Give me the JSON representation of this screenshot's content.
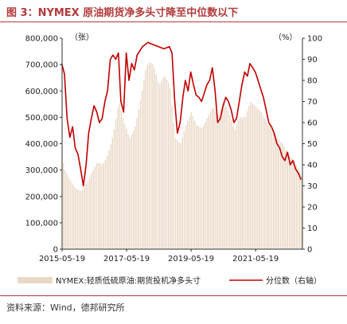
{
  "header": {
    "title": "图 3：NYMEX 原油期货净多头寸降至中位数以下"
  },
  "footer": {
    "source": "资料来源：Wind，德邦研究所"
  },
  "colors": {
    "accent": "#b23a3a",
    "bar_fill": "#ead8c6",
    "line": "#c00000"
  },
  "chart_data": {
    "type": "bar",
    "title": "",
    "x_tick_labels": [
      "2015-05-19",
      "2017-05-19",
      "2019-05-19",
      "2021-05-19"
    ],
    "x_tick_dates": [
      "2015-05-19",
      "2017-05-19",
      "2019-05-19",
      "2021-05-19"
    ],
    "x_range": [
      "2015-05-19",
      "2022-10-31"
    ],
    "left_axis": {
      "unit": "（张）",
      "range": [
        0,
        800000
      ],
      "ticks": [
        "0",
        "100,000",
        "200,000",
        "300,000",
        "400,000",
        "500,000",
        "600,000",
        "700,000",
        "800,000"
      ],
      "tick_values": [
        0,
        100000,
        200000,
        300000,
        400000,
        500000,
        600000,
        700000,
        800000
      ]
    },
    "right_axis": {
      "unit": "（%）",
      "range": [
        0,
        100
      ],
      "ticks": [
        "0",
        "10",
        "20",
        "30",
        "40",
        "50",
        "60",
        "70",
        "80",
        "90",
        "100"
      ],
      "tick_values": [
        0,
        10,
        20,
        30,
        40,
        50,
        60,
        70,
        80,
        90,
        100
      ]
    },
    "grid": false,
    "legend_position": "bottom",
    "series": [
      {
        "name": "NYMEX:轻质低硫原油:期货投机净多头寸",
        "type": "bar",
        "axis": "left",
        "x": [
          "2015-05",
          "2015-06",
          "2015-08",
          "2015-10",
          "2015-12",
          "2016-02",
          "2016-04",
          "2016-06",
          "2016-08",
          "2016-10",
          "2016-12",
          "2017-02",
          "2017-04",
          "2017-06",
          "2017-08",
          "2017-10",
          "2017-12",
          "2018-01",
          "2018-03",
          "2018-05",
          "2018-07",
          "2018-09",
          "2018-11",
          "2019-01",
          "2019-03",
          "2019-05",
          "2019-07",
          "2019-09",
          "2019-11",
          "2020-01",
          "2020-03",
          "2020-05",
          "2020-07",
          "2020-09",
          "2020-11",
          "2021-01",
          "2021-03",
          "2021-05",
          "2021-07",
          "2021-09",
          "2021-11",
          "2022-01",
          "2022-03",
          "2022-05",
          "2022-07",
          "2022-09",
          "2022-10"
        ],
        "values": [
          345000,
          300000,
          260000,
          230000,
          220000,
          250000,
          290000,
          330000,
          320000,
          360000,
          440000,
          560000,
          480000,
          420000,
          460000,
          560000,
          680000,
          710000,
          700000,
          620000,
          660000,
          620000,
          420000,
          400000,
          470000,
          520000,
          470000,
          460000,
          500000,
          540000,
          500000,
          560000,
          520000,
          450000,
          500000,
          500000,
          560000,
          540000,
          520000,
          480000,
          460000,
          420000,
          400000,
          360000,
          340000,
          300000,
          280000
        ]
      },
      {
        "name": "分位数（右轴）",
        "type": "line",
        "axis": "right",
        "x": [
          "2015-05",
          "2015-06",
          "2015-07",
          "2015-08",
          "2015-09",
          "2015-10",
          "2015-11",
          "2015-12",
          "2016-01",
          "2016-02",
          "2016-03",
          "2016-04",
          "2016-05",
          "2016-06",
          "2016-07",
          "2016-08",
          "2016-09",
          "2016-10",
          "2016-11",
          "2016-12",
          "2017-01",
          "2017-02",
          "2017-03",
          "2017-04",
          "2017-05",
          "2017-06",
          "2017-07",
          "2017-08",
          "2017-09",
          "2017-10",
          "2017-11",
          "2017-12",
          "2018-01",
          "2018-03",
          "2018-05",
          "2018-07",
          "2018-09",
          "2018-10",
          "2018-11",
          "2018-12",
          "2019-01",
          "2019-02",
          "2019-03",
          "2019-04",
          "2019-05",
          "2019-06",
          "2019-07",
          "2019-08",
          "2019-09",
          "2019-10",
          "2019-11",
          "2019-12",
          "2020-01",
          "2020-02",
          "2020-03",
          "2020-04",
          "2020-05",
          "2020-06",
          "2020-07",
          "2020-08",
          "2020-09",
          "2020-10",
          "2020-11",
          "2020-12",
          "2021-01",
          "2021-02",
          "2021-03",
          "2021-04",
          "2021-05",
          "2021-06",
          "2021-07",
          "2021-08",
          "2021-09",
          "2021-10",
          "2021-11",
          "2021-12",
          "2022-01",
          "2022-02",
          "2022-03",
          "2022-04",
          "2022-05",
          "2022-06",
          "2022-07",
          "2022-08",
          "2022-09",
          "2022-10"
        ],
        "values": [
          88,
          83,
          62,
          53,
          58,
          48,
          45,
          38,
          30,
          40,
          55,
          62,
          68,
          65,
          60,
          62,
          70,
          75,
          90,
          92,
          90,
          93,
          70,
          65,
          93,
          80,
          88,
          85,
          92,
          94,
          96,
          97,
          98,
          97,
          96,
          95,
          96,
          93,
          70,
          55,
          60,
          72,
          80,
          75,
          84,
          78,
          73,
          72,
          70,
          74,
          78,
          80,
          86,
          75,
          60,
          62,
          68,
          72,
          70,
          66,
          60,
          62,
          70,
          78,
          84,
          82,
          88,
          86,
          84,
          80,
          76,
          72,
          66,
          60,
          58,
          55,
          50,
          48,
          44,
          42,
          46,
          40,
          42,
          38,
          36,
          33
        ]
      }
    ]
  }
}
